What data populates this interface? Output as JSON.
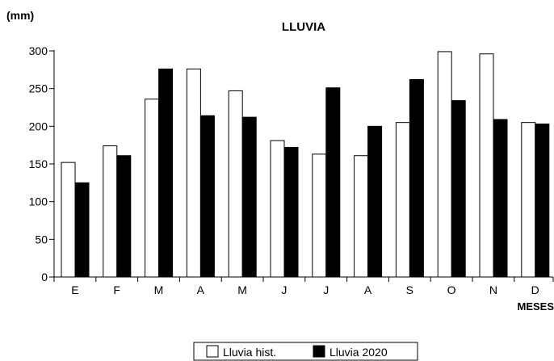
{
  "chart_data": {
    "type": "bar",
    "title": "LLUVIA",
    "unit_label": "(mm)",
    "xlabel": "MESES",
    "ylabel": "",
    "categories": [
      "E",
      "F",
      "M",
      "A",
      "M",
      "J",
      "J",
      "A",
      "S",
      "O",
      "N",
      "D"
    ],
    "ylim": [
      0,
      300
    ],
    "yticks": [
      0,
      50,
      100,
      150,
      200,
      250,
      300
    ],
    "grid": false,
    "legend_position": "bottom-center",
    "series": [
      {
        "name": "Lluvia hist.",
        "color": "#ffffff",
        "values": [
          152,
          174,
          236,
          276,
          247,
          181,
          163,
          161,
          205,
          299,
          296,
          205
        ]
      },
      {
        "name": "Lluvia 2020",
        "color": "#000000",
        "values": [
          125,
          161,
          276,
          214,
          212,
          172,
          251,
          200,
          262,
          234,
          209,
          203
        ]
      }
    ]
  }
}
